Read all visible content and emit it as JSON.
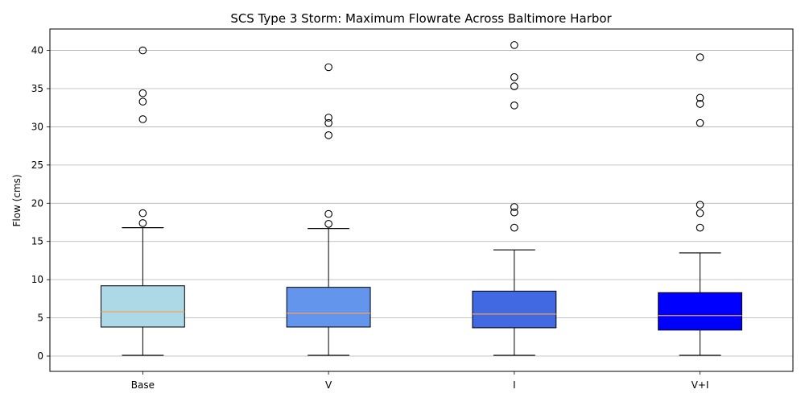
{
  "chart_data": {
    "type": "box",
    "title": "SCS Type 3 Storm: Maximum Flowrate Across Baltimore Harbor",
    "xlabel": "",
    "ylabel": "Flow (cms)",
    "ylim": [
      -2,
      42.8
    ],
    "yticks": [
      0,
      5,
      10,
      15,
      20,
      25,
      30,
      35,
      40
    ],
    "grid": "y",
    "categories": [
      "Base",
      "V",
      "I",
      "V+I"
    ],
    "boxes": [
      {
        "category": "Base",
        "color": "#add8e6",
        "whisker_low": 0.1,
        "q1": 3.8,
        "median": 5.8,
        "q3": 9.2,
        "whisker_high": 16.8,
        "fliers": [
          17.4,
          18.7,
          31.0,
          33.3,
          34.4,
          40.0
        ]
      },
      {
        "category": "V",
        "color": "#6495ed",
        "whisker_low": 0.1,
        "q1": 3.8,
        "median": 5.6,
        "q3": 9.0,
        "whisker_high": 16.7,
        "fliers": [
          17.3,
          18.6,
          28.9,
          30.5,
          31.2,
          37.8
        ]
      },
      {
        "category": "I",
        "color": "#4169e1",
        "whisker_low": 0.1,
        "q1": 3.7,
        "median": 5.5,
        "q3": 8.5,
        "whisker_high": 13.9,
        "fliers": [
          16.8,
          18.8,
          19.5,
          32.8,
          35.3,
          36.5,
          40.7
        ]
      },
      {
        "category": "V+I",
        "color": "#0000ff",
        "whisker_low": 0.1,
        "q1": 3.4,
        "median": 5.3,
        "q3": 8.3,
        "whisker_high": 13.5,
        "fliers": [
          16.8,
          18.7,
          19.8,
          30.5,
          33.0,
          33.8,
          39.1
        ]
      }
    ],
    "median_color": "#f5a15a"
  }
}
